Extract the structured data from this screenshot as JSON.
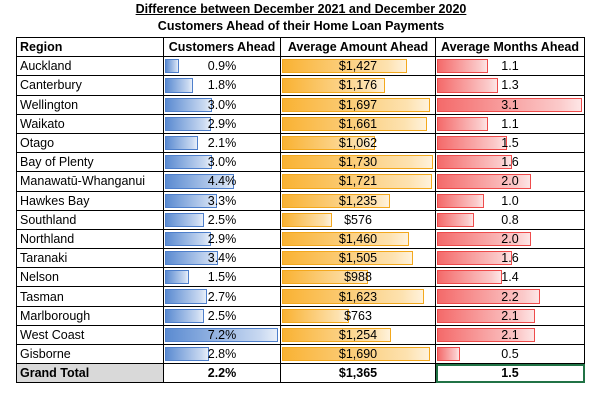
{
  "titles": {
    "line1": "Difference between December 2021 and December 2020",
    "line2": "Customers Ahead of their Home Loan Payments"
  },
  "headers": {
    "region": "Region",
    "customers": "Customers Ahead",
    "amount": "Average Amount Ahead",
    "months": "Average Months Ahead"
  },
  "colors": {
    "customers_bar": "#5b8bd1",
    "amount_bar": "#f9b233",
    "months_bar": "#f46a6a"
  },
  "bar_max": {
    "customers": 7.2,
    "amount": 1730,
    "months": 3.1
  },
  "rows": [
    {
      "region": "Auckland",
      "customers": "0.9%",
      "c": 0.9,
      "amount": "$1,427",
      "a": 1427,
      "months": "1.1",
      "m": 1.1
    },
    {
      "region": "Canterbury",
      "customers": "1.8%",
      "c": 1.8,
      "amount": "$1,176",
      "a": 1176,
      "months": "1.3",
      "m": 1.3
    },
    {
      "region": "Wellington",
      "customers": "3.0%",
      "c": 3.0,
      "amount": "$1,697",
      "a": 1697,
      "months": "3.1",
      "m": 3.1
    },
    {
      "region": "Waikato",
      "customers": "2.9%",
      "c": 2.9,
      "amount": "$1,661",
      "a": 1661,
      "months": "1.1",
      "m": 1.1
    },
    {
      "region": "Otago",
      "customers": "2.1%",
      "c": 2.1,
      "amount": "$1,062",
      "a": 1062,
      "months": "1.5",
      "m": 1.5
    },
    {
      "region": "Bay of Plenty",
      "customers": "3.0%",
      "c": 3.0,
      "amount": "$1,730",
      "a": 1730,
      "months": "1.6",
      "m": 1.6
    },
    {
      "region": "Manawatū-Whanganui",
      "customers": "4.4%",
      "c": 4.4,
      "amount": "$1,721",
      "a": 1721,
      "months": "2.0",
      "m": 2.0
    },
    {
      "region": "Hawkes Bay",
      "customers": "3.3%",
      "c": 3.3,
      "amount": "$1,235",
      "a": 1235,
      "months": "1.0",
      "m": 1.0
    },
    {
      "region": "Southland",
      "customers": "2.5%",
      "c": 2.5,
      "amount": "$576",
      "a": 576,
      "months": "0.8",
      "m": 0.8
    },
    {
      "region": "Northland",
      "customers": "2.9%",
      "c": 2.9,
      "amount": "$1,460",
      "a": 1460,
      "months": "2.0",
      "m": 2.0
    },
    {
      "region": "Taranaki",
      "customers": "3.4%",
      "c": 3.4,
      "amount": "$1,505",
      "a": 1505,
      "months": "1.6",
      "m": 1.6
    },
    {
      "region": "Nelson",
      "customers": "1.5%",
      "c": 1.5,
      "amount": "$988",
      "a": 988,
      "months": "1.4",
      "m": 1.4
    },
    {
      "region": "Tasman",
      "customers": "2.7%",
      "c": 2.7,
      "amount": "$1,623",
      "a": 1623,
      "months": "2.2",
      "m": 2.2
    },
    {
      "region": "Marlborough",
      "customers": "2.5%",
      "c": 2.5,
      "amount": "$763",
      "a": 763,
      "months": "2.1",
      "m": 2.1
    },
    {
      "region": "West Coast",
      "customers": "7.2%",
      "c": 7.2,
      "amount": "$1,254",
      "a": 1254,
      "months": "2.1",
      "m": 2.1
    },
    {
      "region": "Gisborne",
      "customers": "2.8%",
      "c": 2.8,
      "amount": "$1,690",
      "a": 1690,
      "months": "0.5",
      "m": 0.5
    }
  ],
  "total": {
    "region": "Grand Total",
    "customers": "2.2%",
    "c": 2.2,
    "amount": "$1,365",
    "a": 1365,
    "months": "1.5",
    "m": 1.5
  }
}
